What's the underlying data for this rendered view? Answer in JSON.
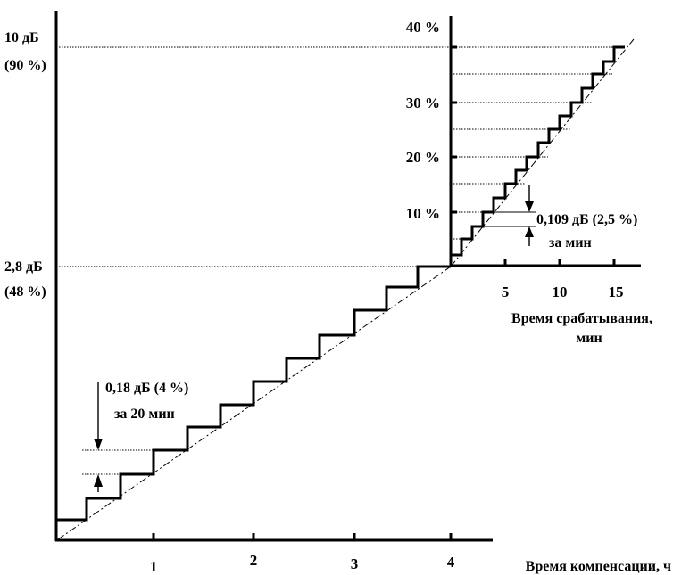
{
  "main_axes": {
    "y_labels": [
      {
        "line1": "10 дБ",
        "line2": "(90 %)"
      },
      {
        "line1": "2,8 дБ",
        "line2": "(48 %)"
      }
    ],
    "x_ticks": [
      "1",
      "2",
      "3",
      "4"
    ],
    "x_title": "Время компенсации, ч",
    "step_annotation": {
      "line1": "0,18 дБ (4 %)",
      "line2": "за 20 мин"
    }
  },
  "inset_axes": {
    "y_ticks": [
      "10 %",
      "20 %",
      "30 %",
      "40 %"
    ],
    "x_ticks": [
      "5",
      "10",
      "15"
    ],
    "x_title": {
      "line1": "Время срабатывания,",
      "line2": "мин"
    },
    "step_annotation": {
      "line1": "0,109 дБ (2,5 %)",
      "line2": "за мин"
    }
  }
}
